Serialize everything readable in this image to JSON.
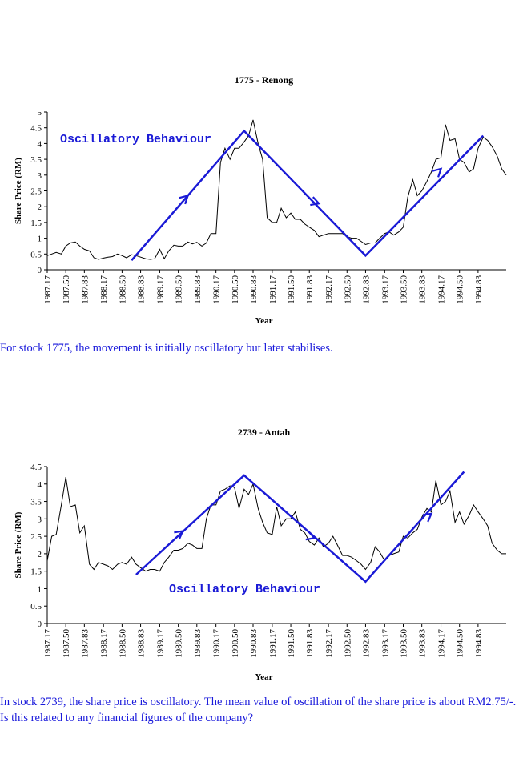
{
  "charts": [
    {
      "title": "1775 - Renong",
      "ylabel": "Share Price (RM)",
      "xlabel": "Year",
      "annotation": "Oscillatory Behaviour",
      "caption": "For stock 1775, the movement is initially oscillatory but later stabilises."
    },
    {
      "title": "2739 - Antah",
      "ylabel": "Share Price (RM)",
      "xlabel": "Year",
      "annotation": "Oscillatory Behaviour",
      "caption": "In stock 2739, the share price is oscillatory. The mean value of oscillation of the share price is about RM2.75/-. Is this related to any financial figures of the company?"
    }
  ],
  "chart_data": [
    {
      "type": "line",
      "title": "1775 - Renong",
      "xlabel": "Year",
      "ylabel": "Share Price (RM)",
      "ylim": [
        0,
        5
      ],
      "yticks": [
        "0",
        "0.5",
        "1",
        "1.5",
        "2",
        "2.5",
        "3",
        "3.5",
        "4",
        "4.5",
        "5"
      ],
      "xlim": [
        1987.17,
        1995.33
      ],
      "xticks": [
        "1987.17",
        "1987.50",
        "1987.83",
        "1988.17",
        "1988.50",
        "1988.83",
        "1989.17",
        "1989.50",
        "1989.83",
        "1990.17",
        "1990.50",
        "1990.83",
        "1991.17",
        "1991.50",
        "1991.83",
        "1992.17",
        "1992.50",
        "1992.83",
        "1993.17",
        "1993.50",
        "1993.83",
        "1994.17",
        "1994.50",
        "1994.83"
      ],
      "grid": false,
      "legend": "none",
      "line_color": "#000000",
      "annotation_color": "#1a1ad6",
      "series": [
        {
          "x": [
            1987.17,
            1987.25,
            1987.33,
            1987.42,
            1987.5,
            1987.58,
            1987.67,
            1987.75,
            1987.83,
            1987.92,
            1988.0,
            1988.08,
            1988.17,
            1988.25,
            1988.33,
            1988.42,
            1988.5,
            1988.58,
            1988.67,
            1988.75,
            1988.83,
            1988.92,
            1989.0,
            1989.08,
            1989.17,
            1989.25,
            1989.33,
            1989.42,
            1989.5,
            1989.58,
            1989.67,
            1989.75,
            1989.83,
            1989.92,
            1990.0,
            1990.08,
            1990.17,
            1990.25,
            1990.33,
            1990.42,
            1990.5,
            1990.58,
            1990.67,
            1990.75,
            1990.83,
            1990.92,
            1991.0,
            1991.08,
            1991.17,
            1991.25,
            1991.33,
            1991.42,
            1991.5,
            1991.58,
            1991.67,
            1991.75,
            1991.83,
            1991.92,
            1992.0,
            1992.08,
            1992.17,
            1992.25,
            1992.33,
            1992.42,
            1992.5,
            1992.58,
            1992.67,
            1992.75,
            1992.83,
            1992.92,
            1993.0,
            1993.08,
            1993.17,
            1993.25,
            1993.33,
            1993.42,
            1993.5,
            1993.58,
            1993.67,
            1993.75,
            1993.83,
            1993.92,
            1994.0,
            1994.08,
            1994.17,
            1994.25,
            1994.33,
            1994.42,
            1994.5,
            1994.58,
            1994.67,
            1994.75,
            1994.83,
            1994.92,
            1995.0,
            1995.08,
            1995.17,
            1995.25,
            1995.33
          ],
          "y": [
            0.45,
            0.5,
            0.55,
            0.5,
            0.75,
            0.85,
            0.88,
            0.75,
            0.65,
            0.6,
            0.38,
            0.33,
            0.37,
            0.4,
            0.42,
            0.5,
            0.45,
            0.38,
            0.48,
            0.45,
            0.4,
            0.35,
            0.33,
            0.35,
            0.65,
            0.35,
            0.6,
            0.78,
            0.75,
            0.75,
            0.88,
            0.82,
            0.87,
            0.75,
            0.85,
            1.15,
            1.15,
            3.4,
            3.85,
            3.5,
            3.85,
            3.85,
            4.05,
            4.25,
            4.75,
            4.0,
            3.5,
            1.65,
            1.5,
            1.5,
            1.95,
            1.65,
            1.8,
            1.6,
            1.6,
            1.45,
            1.35,
            1.25,
            1.05,
            1.1,
            1.15,
            1.15,
            1.15,
            1.15,
            1.05,
            1.0,
            1.0,
            0.9,
            0.8,
            0.85,
            0.85,
            1.0,
            1.15,
            1.2,
            1.1,
            1.2,
            1.35,
            2.3,
            2.85,
            2.35,
            2.5,
            2.8,
            3.1,
            3.5,
            3.55,
            4.6,
            4.1,
            4.15,
            3.5,
            3.4,
            3.1,
            3.2,
            3.85,
            4.2,
            4.1,
            3.9,
            3.6,
            3.2,
            3.0
          ]
        }
      ]
    },
    {
      "type": "line",
      "title": "2739 - Antah",
      "xlabel": "Year",
      "ylabel": "Share Price (RM)",
      "ylim": [
        0,
        4.5
      ],
      "yticks": [
        "0",
        "0.5",
        "1",
        "1.5",
        "2",
        "2.5",
        "3",
        "3.5",
        "4",
        "4.5"
      ],
      "xlim": [
        1987.17,
        1995.33
      ],
      "xticks": [
        "1987.17",
        "1987.50",
        "1987.83",
        "1988.17",
        "1988.50",
        "1988.83",
        "1989.17",
        "1989.50",
        "1989.83",
        "1990.17",
        "1990.50",
        "1990.83",
        "1991.17",
        "1991.50",
        "1991.83",
        "1992.17",
        "1992.50",
        "1992.83",
        "1993.17",
        "1993.50",
        "1993.83",
        "1994.17",
        "1994.50",
        "1994.83"
      ],
      "grid": false,
      "legend": "none",
      "line_color": "#000000",
      "annotation_color": "#1a1ad6",
      "series": [
        {
          "x": [
            1987.17,
            1987.25,
            1987.33,
            1987.42,
            1987.5,
            1987.58,
            1987.67,
            1987.75,
            1987.83,
            1987.92,
            1988.0,
            1988.08,
            1988.17,
            1988.25,
            1988.33,
            1988.42,
            1988.5,
            1988.58,
            1988.67,
            1988.75,
            1988.83,
            1988.92,
            1989.0,
            1989.08,
            1989.17,
            1989.25,
            1989.33,
            1989.42,
            1989.5,
            1989.58,
            1989.67,
            1989.75,
            1989.83,
            1989.92,
            1990.0,
            1990.08,
            1990.17,
            1990.25,
            1990.33,
            1990.42,
            1990.5,
            1990.58,
            1990.67,
            1990.75,
            1990.83,
            1990.92,
            1991.0,
            1991.08,
            1991.17,
            1991.25,
            1991.33,
            1991.42,
            1991.5,
            1991.58,
            1991.67,
            1991.75,
            1991.83,
            1991.92,
            1992.0,
            1992.08,
            1992.17,
            1992.25,
            1992.33,
            1992.42,
            1992.5,
            1992.58,
            1992.67,
            1992.75,
            1992.83,
            1992.92,
            1993.0,
            1993.08,
            1993.17,
            1993.25,
            1993.33,
            1993.42,
            1993.5,
            1993.58,
            1993.67,
            1993.75,
            1993.83,
            1993.92,
            1994.0,
            1994.08,
            1994.17,
            1994.25,
            1994.33,
            1994.42,
            1994.5,
            1994.58,
            1994.67,
            1994.75,
            1994.83,
            1994.92,
            1995.0,
            1995.08,
            1995.17,
            1995.25,
            1995.33
          ],
          "y": [
            1.8,
            2.5,
            2.55,
            3.4,
            4.2,
            3.35,
            3.4,
            2.6,
            2.8,
            1.7,
            1.55,
            1.75,
            1.7,
            1.65,
            1.55,
            1.7,
            1.75,
            1.7,
            1.9,
            1.7,
            1.6,
            1.5,
            1.55,
            1.55,
            1.5,
            1.75,
            1.9,
            2.1,
            2.1,
            2.15,
            2.3,
            2.25,
            2.15,
            2.15,
            3.0,
            3.4,
            3.4,
            3.8,
            3.85,
            3.95,
            3.9,
            3.3,
            3.85,
            3.7,
            4.0,
            3.3,
            2.9,
            2.6,
            2.55,
            3.35,
            2.8,
            3.0,
            3.0,
            3.2,
            2.7,
            2.6,
            2.35,
            2.25,
            2.45,
            2.2,
            2.3,
            2.5,
            2.25,
            1.95,
            1.95,
            1.9,
            1.8,
            1.7,
            1.55,
            1.75,
            2.2,
            2.05,
            1.8,
            1.95,
            2.0,
            2.05,
            2.5,
            2.45,
            2.6,
            2.7,
            3.05,
            3.3,
            3.2,
            4.1,
            3.4,
            3.5,
            3.8,
            2.9,
            3.2,
            2.85,
            3.1,
            3.4,
            3.2,
            3.0,
            2.8,
            2.3,
            2.1,
            2.0,
            2.0
          ]
        }
      ]
    }
  ]
}
